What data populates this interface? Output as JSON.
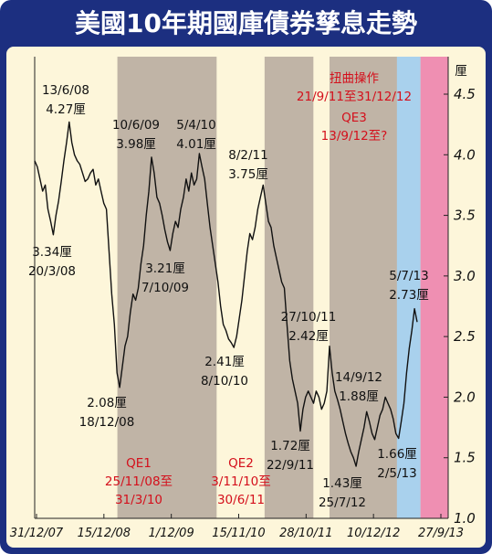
{
  "chart_data": {
    "type": "line",
    "title": "美國10年期國庫債券孳息走勢",
    "ylabel": "厘",
    "ylim": [
      1.0,
      4.5
    ],
    "yticks": [
      "1.0",
      "1.5",
      "2.0",
      "2.5",
      "3.0",
      "3.5",
      "4.0",
      "4.5"
    ],
    "xtick_labels": [
      "31/12/07",
      "15/12/08",
      "1/12/09",
      "15/11/10",
      "28/10/11",
      "10/12/12",
      "27/9/13"
    ],
    "series": [
      {
        "values": [
          3.95,
          3.9,
          3.8,
          3.7,
          3.75,
          3.55,
          3.45,
          3.34,
          3.5,
          3.62,
          3.78,
          3.95,
          4.1,
          4.27,
          4.1,
          4.0,
          3.95,
          3.92,
          3.85,
          3.78,
          3.8,
          3.85,
          3.88,
          3.75,
          3.8,
          3.7,
          3.6,
          3.55,
          3.2,
          2.85,
          2.6,
          2.2,
          2.08,
          2.25,
          2.42,
          2.5,
          2.7,
          2.85,
          2.8,
          2.9,
          3.1,
          3.25,
          3.5,
          3.7,
          3.98,
          3.85,
          3.65,
          3.6,
          3.5,
          3.38,
          3.28,
          3.21,
          3.35,
          3.45,
          3.4,
          3.55,
          3.65,
          3.8,
          3.7,
          3.85,
          3.75,
          3.8,
          4.01,
          3.9,
          3.8,
          3.6,
          3.4,
          3.25,
          3.1,
          2.95,
          2.75,
          2.6,
          2.55,
          2.48,
          2.45,
          2.41,
          2.5,
          2.65,
          2.8,
          3.0,
          3.2,
          3.35,
          3.3,
          3.4,
          3.55,
          3.65,
          3.75,
          3.6,
          3.45,
          3.4,
          3.25,
          3.15,
          3.05,
          2.95,
          2.9,
          2.6,
          2.3,
          2.15,
          2.05,
          1.95,
          1.72,
          1.9,
          2.0,
          2.05,
          2.0,
          1.95,
          2.05,
          2.0,
          1.9,
          1.95,
          2.05,
          2.42,
          2.2,
          2.05,
          1.98,
          1.9,
          1.8,
          1.7,
          1.62,
          1.55,
          1.5,
          1.43,
          1.55,
          1.65,
          1.75,
          1.88,
          1.8,
          1.7,
          1.65,
          1.75,
          1.85,
          1.9,
          2.0,
          1.95,
          1.9,
          1.82,
          1.7,
          1.66,
          1.8,
          1.95,
          2.2,
          2.4,
          2.55,
          2.73,
          2.62
        ]
      }
    ],
    "shaded_periods": [
      {
        "label": "QE1",
        "dates": "25/11/08至31/3/10",
        "x_start": 0.2,
        "x_end": 0.44,
        "color": "#c0b4a6"
      },
      {
        "label": "QE2",
        "dates": "3/11/10至30/6/11",
        "x_start": 0.556,
        "x_end": 0.674,
        "color": "#c0b4a6"
      },
      {
        "label": "扭曲操作",
        "dates": "21/9/11至31/12/12",
        "x_start": 0.713,
        "x_end": 0.933,
        "color": "#c0b4a6"
      },
      {
        "label": "QE3",
        "dates": "13/9/12至?",
        "x_start": 0.876,
        "x_end": 0.933,
        "color": "#a9d1ed"
      },
      {
        "label": "",
        "dates": "",
        "x_start": 0.933,
        "x_end": 1.15,
        "color": "#ef8fb2"
      }
    ],
    "annotations": [
      {
        "date": "13/6/08",
        "value": "4.27厘"
      },
      {
        "date": "20/3/08",
        "value": "3.34厘"
      },
      {
        "date": "18/12/08",
        "value": "2.08厘"
      },
      {
        "date": "10/6/09",
        "value": "3.98厘"
      },
      {
        "date": "7/10/09",
        "value": "3.21厘"
      },
      {
        "date": "5/4/10",
        "value": "4.01厘"
      },
      {
        "date": "8/10/10",
        "value": "2.41厘"
      },
      {
        "date": "8/2/11",
        "value": "3.75厘"
      },
      {
        "date": "27/10/11",
        "value": "2.42厘"
      },
      {
        "date": "22/9/11",
        "value": "1.72厘"
      },
      {
        "date": "14/9/12",
        "value": "1.88厘"
      },
      {
        "date": "25/7/12",
        "value": "1.43厘"
      },
      {
        "date": "2/5/13",
        "value": "1.66厘"
      },
      {
        "date": "5/7/13",
        "value": "2.73厘"
      }
    ]
  }
}
